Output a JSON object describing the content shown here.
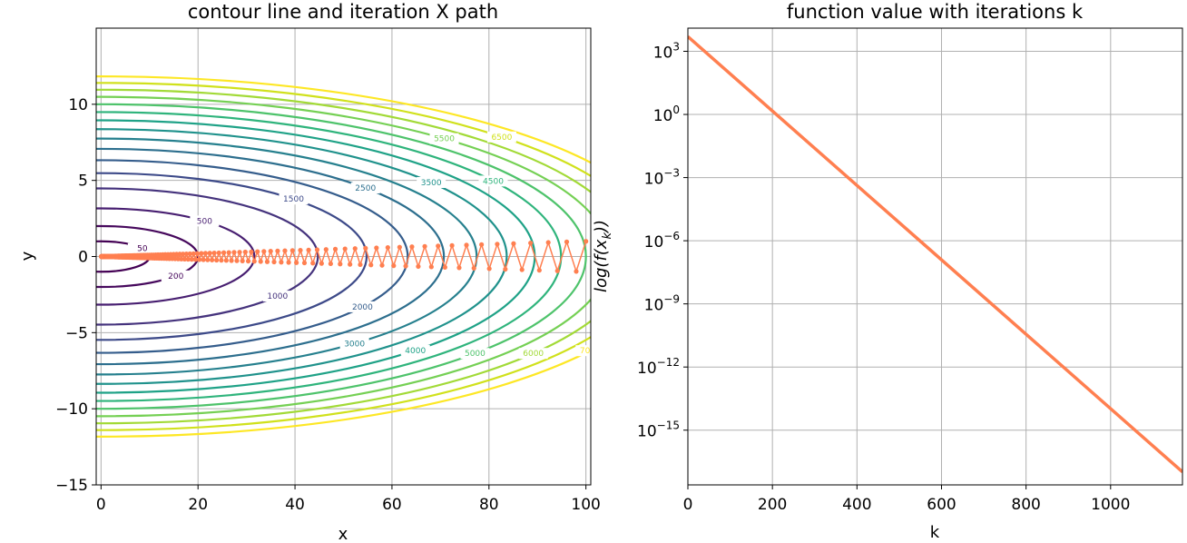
{
  "chart_data": [
    {
      "type": "contour",
      "title": "contour line and iteration X path",
      "xlabel": "x",
      "ylabel": "y",
      "xlim": [
        -1,
        101
      ],
      "ylim": [
        -15,
        15
      ],
      "xticks": [
        0,
        20,
        40,
        60,
        80,
        100
      ],
      "xtick_labels": [
        "0",
        "20",
        "40",
        "60",
        "80",
        "100"
      ],
      "yticks": [
        -15,
        -10,
        -5,
        0,
        5,
        10
      ],
      "ytick_labels": [
        "−15",
        "−10",
        "−5",
        "0",
        "5",
        "10"
      ],
      "grid": true,
      "function": {
        "a": 0.5,
        "b": 50
      },
      "levels": [
        {
          "value": 50,
          "label": "50",
          "color": "#440154"
        },
        {
          "value": 200,
          "label": "200",
          "color": "#46085c"
        },
        {
          "value": 500,
          "label": "500",
          "color": "#481f71"
        },
        {
          "value": 1000,
          "label": "1000",
          "color": "#45337d"
        },
        {
          "value": 1500,
          "label": "1500",
          "color": "#3d4a89"
        },
        {
          "value": 2000,
          "label": "2000",
          "color": "#355d8c"
        },
        {
          "value": 2500,
          "label": "2500",
          "color": "#2d6f8e"
        },
        {
          "value": 3000,
          "label": "3000",
          "color": "#26808e"
        },
        {
          "value": 3500,
          "label": "3500",
          "color": "#20928c"
        },
        {
          "value": 4000,
          "label": "4000",
          "color": "#1fa287"
        },
        {
          "value": 4500,
          "label": "4500",
          "color": "#2fb47c"
        },
        {
          "value": 5000,
          "label": "5000",
          "color": "#4ec36b"
        },
        {
          "value": 5500,
          "label": "5500",
          "color": "#75d054"
        },
        {
          "value": 6000,
          "label": "6000",
          "color": "#a2da37"
        },
        {
          "value": 6500,
          "label": "6500",
          "color": "#d0e11c"
        },
        {
          "value": 7000,
          "label": "7000",
          "color": "#fde725"
        }
      ],
      "path": {
        "start": [
          100,
          1
        ],
        "x_step_factor": 0.98,
        "y_step_factor": -0.98,
        "points": 1170,
        "color": "#ff7f50"
      }
    },
    {
      "type": "line",
      "title": "function value with iterations k",
      "xlabel": "k",
      "ylabel": "log(f(x_k))",
      "ylabel_parts": {
        "main": "log(f(x",
        "sub": "k",
        "tail": "))"
      },
      "xlim": [
        0,
        1170
      ],
      "xticks": [
        0,
        200,
        400,
        600,
        800,
        1000
      ],
      "xtick_labels": [
        "0",
        "200",
        "400",
        "600",
        "800",
        "1000"
      ],
      "yscale": "log",
      "ylim_log10": [
        -17.6,
        4.1
      ],
      "yticks_log10": [
        3,
        0,
        -3,
        -6,
        -9,
        -12,
        -15
      ],
      "ytick_labels": [
        {
          "base": "10",
          "exp": "3"
        },
        {
          "base": "10",
          "exp": "0"
        },
        {
          "base": "10",
          "exp": "−3"
        },
        {
          "base": "10",
          "exp": "−6"
        },
        {
          "base": "10",
          "exp": "−9"
        },
        {
          "base": "10",
          "exp": "−12"
        },
        {
          "base": "10",
          "exp": "−15"
        }
      ],
      "grid": true,
      "series": [
        {
          "x": [
            0,
            1170
          ],
          "y": [
            5000,
            1.04e-17
          ],
          "color": "#ff7f50"
        }
      ]
    }
  ]
}
